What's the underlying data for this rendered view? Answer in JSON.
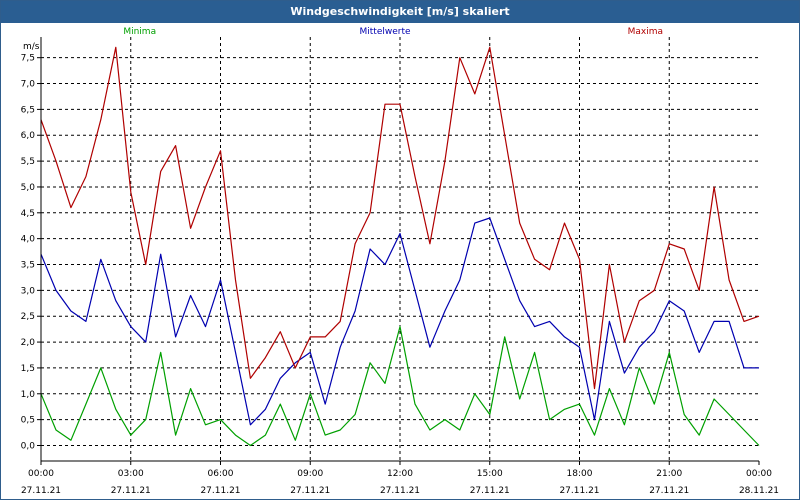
{
  "window": {
    "title": "Windgeschwindigkeit [m/s] skaliert"
  },
  "chart_data": {
    "type": "line",
    "title": "Windgeschwindigkeit [m/s] skaliert",
    "ylabel": "m/s",
    "xlabel": "",
    "ylim": [
      -0.3,
      7.9
    ],
    "yticks": [
      0.0,
      0.5,
      1.0,
      1.5,
      2.0,
      2.5,
      3.0,
      3.5,
      4.0,
      4.5,
      5.0,
      5.5,
      6.0,
      6.5,
      7.0,
      7.5
    ],
    "ytick_labels": [
      "0,0",
      "0,5",
      "1,0",
      "1,5",
      "2,0",
      "2,5",
      "3,0",
      "3,5",
      "4,0",
      "4,5",
      "5,0",
      "5,5",
      "6,0",
      "6,5",
      "7,0",
      "7,5"
    ],
    "xlim_hours": [
      0,
      24
    ],
    "xticks": [
      {
        "hour": 0,
        "time": "00:00",
        "date": "27.11.21"
      },
      {
        "hour": 3,
        "time": "03:00",
        "date": "27.11.21"
      },
      {
        "hour": 6,
        "time": "06:00",
        "date": "27.11.21"
      },
      {
        "hour": 9,
        "time": "09:00",
        "date": "27.11.21"
      },
      {
        "hour": 12,
        "time": "12:00",
        "date": "27.11.21"
      },
      {
        "hour": 15,
        "time": "15:00",
        "date": "27.11.21"
      },
      {
        "hour": 18,
        "time": "18:00",
        "date": "27.11.21"
      },
      {
        "hour": 21,
        "time": "21:00",
        "date": "27.11.21"
      },
      {
        "hour": 24,
        "time": "00:00",
        "date": "28.11.21"
      }
    ],
    "grid": true,
    "legend_position": "top",
    "x": [
      0,
      0.5,
      1,
      1.5,
      2,
      2.5,
      3,
      3.5,
      4,
      4.5,
      5,
      5.5,
      6,
      6.5,
      7,
      7.5,
      8,
      8.5,
      9,
      9.5,
      10,
      10.5,
      11,
      11.5,
      12,
      12.5,
      13,
      13.5,
      14,
      14.5,
      15,
      15.5,
      16,
      16.5,
      17,
      17.5,
      18,
      18.5,
      19,
      19.5,
      20,
      20.5,
      21,
      21.5,
      22,
      22.5,
      23,
      23.5,
      24
    ],
    "series": [
      {
        "name": "Minima",
        "color": "#00a000",
        "values": [
          1.0,
          0.3,
          0.1,
          0.8,
          1.5,
          0.7,
          0.2,
          0.5,
          1.8,
          0.2,
          1.1,
          0.4,
          0.5,
          0.2,
          0.0,
          0.2,
          0.8,
          0.1,
          1.0,
          0.2,
          0.3,
          0.6,
          1.6,
          1.2,
          2.3,
          0.8,
          0.3,
          0.5,
          0.3,
          1.0,
          0.6,
          2.1,
          0.9,
          1.8,
          0.5,
          0.7,
          0.8,
          0.2,
          1.1,
          0.4,
          1.5,
          0.8,
          1.8,
          0.6,
          0.2,
          0.9,
          0.6,
          0.3,
          0.0
        ]
      },
      {
        "name": "Mittelwerte",
        "color": "#0000b0",
        "values": [
          3.7,
          3.0,
          2.6,
          2.4,
          3.6,
          2.8,
          2.3,
          2.0,
          3.7,
          2.1,
          2.9,
          2.3,
          3.2,
          1.8,
          0.4,
          0.7,
          1.3,
          1.6,
          1.8,
          0.8,
          1.9,
          2.6,
          3.8,
          3.5,
          4.1,
          3.0,
          1.9,
          2.6,
          3.2,
          4.3,
          4.4,
          3.6,
          2.8,
          2.3,
          2.4,
          2.1,
          1.9,
          0.5,
          2.4,
          1.4,
          1.9,
          2.2,
          2.8,
          2.6,
          1.8,
          2.4,
          2.4,
          1.5,
          1.5
        ]
      },
      {
        "name": "Maxima",
        "color": "#b00000",
        "values": [
          6.3,
          5.5,
          4.6,
          5.2,
          6.3,
          7.7,
          4.9,
          3.5,
          5.3,
          5.8,
          4.2,
          5.0,
          5.7,
          3.2,
          1.3,
          1.7,
          2.2,
          1.5,
          2.1,
          2.1,
          2.4,
          3.9,
          4.5,
          6.6,
          6.6,
          5.2,
          3.9,
          5.5,
          7.5,
          6.8,
          7.7,
          6.0,
          4.3,
          3.6,
          3.4,
          4.3,
          3.6,
          1.1,
          3.5,
          2.0,
          2.8,
          3.0,
          3.9,
          3.8,
          3.0,
          5.0,
          3.2,
          2.4,
          2.5
        ]
      }
    ]
  }
}
